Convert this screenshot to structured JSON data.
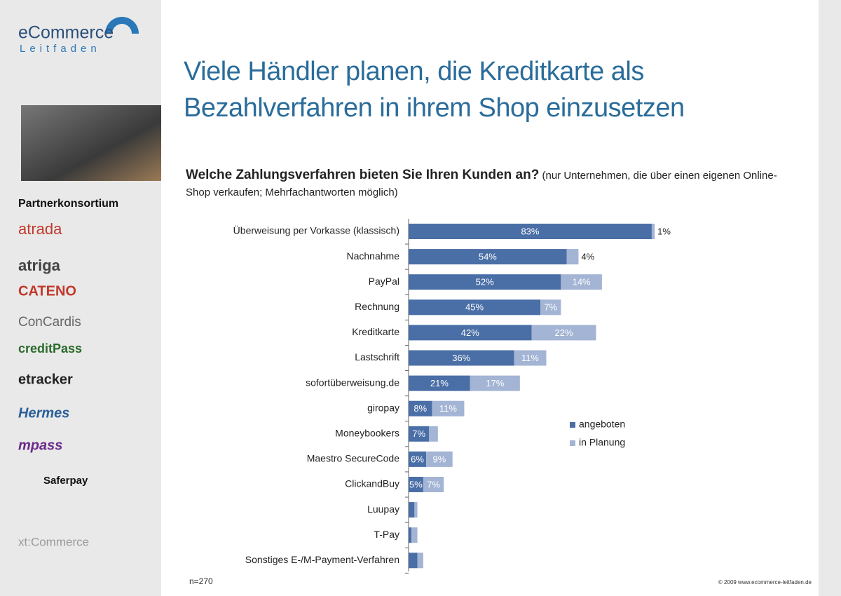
{
  "brand": {
    "name": "eCommerce",
    "sub": "Leitfaden"
  },
  "sidebar": {
    "heading": "Partnerkonsortium",
    "partners": [
      "atrada",
      "atriga",
      "CATENO",
      "ConCardis",
      "creditPass",
      "etracker",
      "Hermes",
      "mpass",
      "Saferpay",
      "xt:Commerce"
    ]
  },
  "footer": {
    "sample": "n=270",
    "copyright": "© 2009 www.ecommerce-leitfaden.de"
  },
  "chart_data": {
    "type": "stacked-bar-horizontal",
    "title": "Viele Händler planen, die Kreditkarte als Bezahlverfahren in ihrem Shop einzusetzen",
    "subtitle": "Welche Zahlungsverfahren bieten Sie Ihren Kunden an?",
    "note": "(nur Unternehmen, die über einen eigenen Online-Shop verkaufen; Mehrfachantworten möglich)",
    "categories": [
      "Überweisung per Vorkasse (klassisch)",
      "Nachnahme",
      "PayPal",
      "Rechnung",
      "Kreditkarte",
      "Lastschrift",
      "sofortüberweisung.de",
      "giropay",
      "Moneybookers",
      "Maestro SecureCode",
      "ClickandBuy",
      "Luupay",
      "T-Pay",
      "Sonstiges E-/M-Payment-Verfahren"
    ],
    "xlim": [
      0,
      100
    ],
    "series": [
      {
        "name": "angeboten",
        "color": "#4a6ea6",
        "values": [
          83,
          54,
          52,
          45,
          42,
          36,
          21,
          8,
          7,
          6,
          5,
          2,
          1,
          3
        ],
        "value_labels": [
          "83%",
          "54%",
          "52%",
          "45%",
          "42%",
          "36%",
          "21%",
          "8%",
          "7%",
          "6%",
          "5%",
          null,
          null,
          null
        ]
      },
      {
        "name": "in Planung",
        "color": "#a3b4d4",
        "values": [
          1,
          4,
          14,
          7,
          22,
          11,
          17,
          11,
          3,
          9,
          7,
          1,
          2,
          2
        ],
        "value_labels": [
          "1%",
          "4%",
          "14%",
          "7%",
          "22%",
          "11%",
          "17%",
          "11%",
          null,
          "9%",
          "7%",
          null,
          null,
          null
        ]
      }
    ],
    "legend": "right"
  }
}
